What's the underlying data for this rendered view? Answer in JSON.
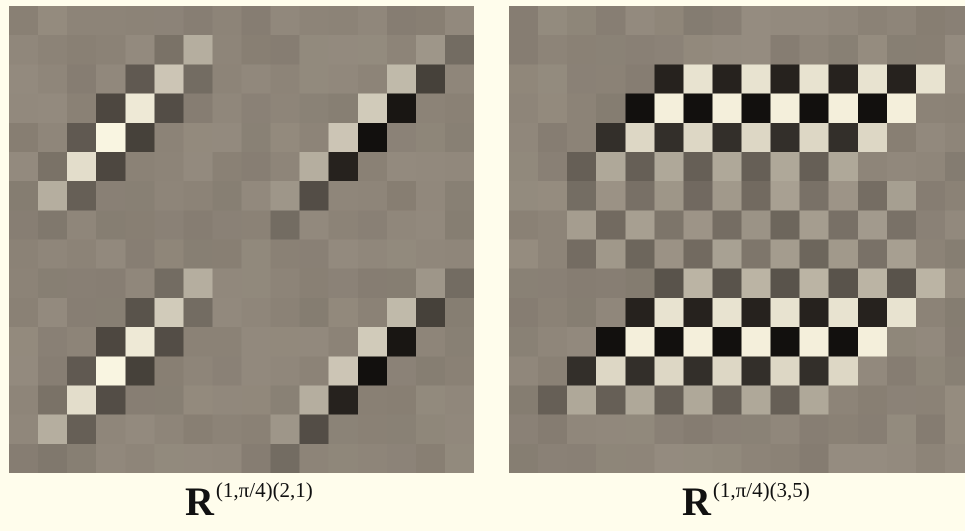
{
  "panels": [
    {
      "id": "left",
      "caption_symbol": "R",
      "caption_superscript": "(1,π/4)(2,1)"
    },
    {
      "id": "right",
      "caption_symbol": "R",
      "caption_superscript": "(1,π/4)(3,5)"
    }
  ],
  "colors": {
    "background": "#fffdec",
    "tile_base": "#8d8478",
    "bright": "#fffbe6",
    "dark": "#0c0a08"
  }
}
